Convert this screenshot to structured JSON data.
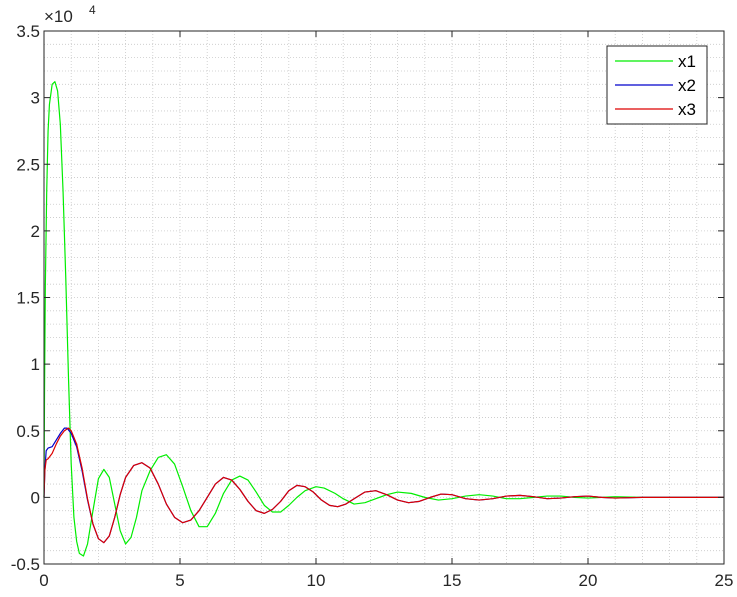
{
  "chart_data": {
    "type": "line",
    "title": "",
    "xlabel": "",
    "ylabel": "",
    "xlim": [
      0,
      25
    ],
    "ylim": [
      -0.5,
      3.5
    ],
    "y_exponent_label": "×10",
    "y_exponent_power": "4",
    "x_ticks": [
      "0",
      "5",
      "10",
      "15",
      "20",
      "25"
    ],
    "y_ticks": [
      "-0.5",
      "0",
      "0.5",
      "1",
      "1.5",
      "2",
      "2.5",
      "3",
      "3.5"
    ],
    "grid": "minor-dotted",
    "legend_position": "top-right",
    "series": [
      {
        "name": "x1",
        "color": "#00ee00",
        "points": [
          [
            0,
            0
          ],
          [
            0.02,
            0.8
          ],
          [
            0.05,
            1.6
          ],
          [
            0.1,
            2.3
          ],
          [
            0.15,
            2.75
          ],
          [
            0.2,
            2.95
          ],
          [
            0.3,
            3.1
          ],
          [
            0.4,
            3.12
          ],
          [
            0.5,
            3.05
          ],
          [
            0.6,
            2.8
          ],
          [
            0.7,
            2.3
          ],
          [
            0.8,
            1.65
          ],
          [
            0.9,
            0.9
          ],
          [
            1.0,
            0.25
          ],
          [
            1.1,
            -0.15
          ],
          [
            1.2,
            -0.33
          ],
          [
            1.3,
            -0.42
          ],
          [
            1.45,
            -0.44
          ],
          [
            1.6,
            -0.35
          ],
          [
            1.8,
            -0.1
          ],
          [
            2.0,
            0.14
          ],
          [
            2.2,
            0.21
          ],
          [
            2.4,
            0.15
          ],
          [
            2.6,
            -0.05
          ],
          [
            2.8,
            -0.25
          ],
          [
            3.0,
            -0.35
          ],
          [
            3.2,
            -0.3
          ],
          [
            3.4,
            -0.15
          ],
          [
            3.6,
            0.05
          ],
          [
            3.9,
            0.2
          ],
          [
            4.2,
            0.3
          ],
          [
            4.5,
            0.32
          ],
          [
            4.8,
            0.25
          ],
          [
            5.1,
            0.08
          ],
          [
            5.4,
            -0.1
          ],
          [
            5.7,
            -0.22
          ],
          [
            6.0,
            -0.22
          ],
          [
            6.3,
            -0.12
          ],
          [
            6.6,
            0.03
          ],
          [
            6.9,
            0.13
          ],
          [
            7.2,
            0.16
          ],
          [
            7.5,
            0.13
          ],
          [
            7.8,
            0.04
          ],
          [
            8.1,
            -0.06
          ],
          [
            8.4,
            -0.11
          ],
          [
            8.7,
            -0.11
          ],
          [
            9.0,
            -0.06
          ],
          [
            9.3,
            0.0
          ],
          [
            9.6,
            0.05
          ],
          [
            10.0,
            0.08
          ],
          [
            10.3,
            0.07
          ],
          [
            10.7,
            0.03
          ],
          [
            11.0,
            -0.01
          ],
          [
            11.4,
            -0.05
          ],
          [
            11.8,
            -0.04
          ],
          [
            12.2,
            -0.01
          ],
          [
            12.6,
            0.02
          ],
          [
            13.0,
            0.04
          ],
          [
            13.5,
            0.03
          ],
          [
            14.0,
            0.0
          ],
          [
            14.5,
            -0.02
          ],
          [
            15.0,
            -0.01
          ],
          [
            15.5,
            0.01
          ],
          [
            16.0,
            0.02
          ],
          [
            16.5,
            0.01
          ],
          [
            17.0,
            -0.01
          ],
          [
            17.5,
            -0.01
          ],
          [
            18.0,
            0.0
          ],
          [
            18.5,
            0.01
          ],
          [
            19.0,
            0.01
          ],
          [
            19.5,
            0.0
          ],
          [
            20.0,
            -0.005
          ],
          [
            20.5,
            0.0
          ],
          [
            21.0,
            0.005
          ],
          [
            22.0,
            0.0
          ],
          [
            23.0,
            0.0
          ],
          [
            25.0,
            0.0
          ]
        ]
      },
      {
        "name": "x2",
        "color": "#0000cc",
        "points": [
          [
            0,
            0
          ],
          [
            0.03,
            0.2
          ],
          [
            0.08,
            0.35
          ],
          [
            0.15,
            0.37
          ],
          [
            0.3,
            0.38
          ],
          [
            0.45,
            0.43
          ],
          [
            0.6,
            0.48
          ],
          [
            0.75,
            0.52
          ],
          [
            0.85,
            0.52
          ],
          [
            1.0,
            0.48
          ],
          [
            1.2,
            0.38
          ],
          [
            1.4,
            0.2
          ],
          [
            1.6,
            -0.02
          ],
          [
            1.8,
            -0.2
          ],
          [
            2.0,
            -0.31
          ],
          [
            2.2,
            -0.34
          ],
          [
            2.4,
            -0.29
          ],
          [
            2.6,
            -0.15
          ],
          [
            2.8,
            0.02
          ],
          [
            3.0,
            0.15
          ],
          [
            3.3,
            0.24
          ],
          [
            3.6,
            0.26
          ],
          [
            3.9,
            0.22
          ],
          [
            4.2,
            0.1
          ],
          [
            4.5,
            -0.05
          ],
          [
            4.8,
            -0.15
          ],
          [
            5.1,
            -0.19
          ],
          [
            5.4,
            -0.17
          ],
          [
            5.7,
            -0.1
          ],
          [
            6.0,
            0.0
          ],
          [
            6.3,
            0.1
          ],
          [
            6.6,
            0.15
          ],
          [
            6.9,
            0.13
          ],
          [
            7.2,
            0.06
          ],
          [
            7.5,
            -0.03
          ],
          [
            7.8,
            -0.1
          ],
          [
            8.1,
            -0.12
          ],
          [
            8.4,
            -0.09
          ],
          [
            8.7,
            -0.03
          ],
          [
            9.0,
            0.05
          ],
          [
            9.3,
            0.09
          ],
          [
            9.6,
            0.08
          ],
          [
            9.9,
            0.04
          ],
          [
            10.2,
            -0.02
          ],
          [
            10.5,
            -0.06
          ],
          [
            10.8,
            -0.07
          ],
          [
            11.1,
            -0.05
          ],
          [
            11.4,
            -0.01
          ],
          [
            11.8,
            0.04
          ],
          [
            12.2,
            0.05
          ],
          [
            12.6,
            0.02
          ],
          [
            13.0,
            -0.02
          ],
          [
            13.4,
            -0.04
          ],
          [
            13.8,
            -0.03
          ],
          [
            14.2,
            0.0
          ],
          [
            14.6,
            0.025
          ],
          [
            15.0,
            0.02
          ],
          [
            15.5,
            -0.01
          ],
          [
            16.0,
            -0.02
          ],
          [
            16.5,
            -0.01
          ],
          [
            17.0,
            0.01
          ],
          [
            17.5,
            0.015
          ],
          [
            18.0,
            0.005
          ],
          [
            18.5,
            -0.01
          ],
          [
            19.0,
            -0.005
          ],
          [
            19.5,
            0.005
          ],
          [
            20.0,
            0.01
          ],
          [
            20.5,
            0.0
          ],
          [
            21.0,
            -0.005
          ],
          [
            22.0,
            0.0
          ],
          [
            23.0,
            0.0
          ],
          [
            25.0,
            0.0
          ]
        ]
      },
      {
        "name": "x3",
        "color": "#dd0000",
        "points": [
          [
            0,
            0
          ],
          [
            0.03,
            0.2
          ],
          [
            0.08,
            0.28
          ],
          [
            0.15,
            0.29
          ],
          [
            0.3,
            0.33
          ],
          [
            0.45,
            0.4
          ],
          [
            0.6,
            0.46
          ],
          [
            0.75,
            0.5
          ],
          [
            0.9,
            0.52
          ],
          [
            1.0,
            0.5
          ],
          [
            1.2,
            0.4
          ],
          [
            1.4,
            0.22
          ],
          [
            1.6,
            -0.01
          ],
          [
            1.8,
            -0.2
          ],
          [
            2.0,
            -0.31
          ],
          [
            2.2,
            -0.34
          ],
          [
            2.4,
            -0.29
          ],
          [
            2.6,
            -0.15
          ],
          [
            2.8,
            0.02
          ],
          [
            3.0,
            0.15
          ],
          [
            3.3,
            0.24
          ],
          [
            3.6,
            0.26
          ],
          [
            3.9,
            0.22
          ],
          [
            4.2,
            0.1
          ],
          [
            4.5,
            -0.05
          ],
          [
            4.8,
            -0.15
          ],
          [
            5.1,
            -0.19
          ],
          [
            5.4,
            -0.17
          ],
          [
            5.7,
            -0.1
          ],
          [
            6.0,
            0.0
          ],
          [
            6.3,
            0.1
          ],
          [
            6.6,
            0.15
          ],
          [
            6.9,
            0.13
          ],
          [
            7.2,
            0.06
          ],
          [
            7.5,
            -0.03
          ],
          [
            7.8,
            -0.1
          ],
          [
            8.1,
            -0.12
          ],
          [
            8.4,
            -0.09
          ],
          [
            8.7,
            -0.03
          ],
          [
            9.0,
            0.05
          ],
          [
            9.3,
            0.09
          ],
          [
            9.6,
            0.08
          ],
          [
            9.9,
            0.04
          ],
          [
            10.2,
            -0.02
          ],
          [
            10.5,
            -0.06
          ],
          [
            10.8,
            -0.07
          ],
          [
            11.1,
            -0.05
          ],
          [
            11.4,
            -0.01
          ],
          [
            11.8,
            0.04
          ],
          [
            12.2,
            0.05
          ],
          [
            12.6,
            0.02
          ],
          [
            13.0,
            -0.02
          ],
          [
            13.4,
            -0.04
          ],
          [
            13.8,
            -0.03
          ],
          [
            14.2,
            0.0
          ],
          [
            14.6,
            0.025
          ],
          [
            15.0,
            0.02
          ],
          [
            15.5,
            -0.01
          ],
          [
            16.0,
            -0.02
          ],
          [
            16.5,
            -0.01
          ],
          [
            17.0,
            0.01
          ],
          [
            17.5,
            0.015
          ],
          [
            18.0,
            0.005
          ],
          [
            18.5,
            -0.01
          ],
          [
            19.0,
            -0.005
          ],
          [
            19.5,
            0.005
          ],
          [
            20.0,
            0.01
          ],
          [
            20.5,
            0.0
          ],
          [
            21.0,
            -0.005
          ],
          [
            22.0,
            0.0
          ],
          [
            23.0,
            0.0
          ],
          [
            25.0,
            0.0
          ]
        ]
      }
    ]
  }
}
